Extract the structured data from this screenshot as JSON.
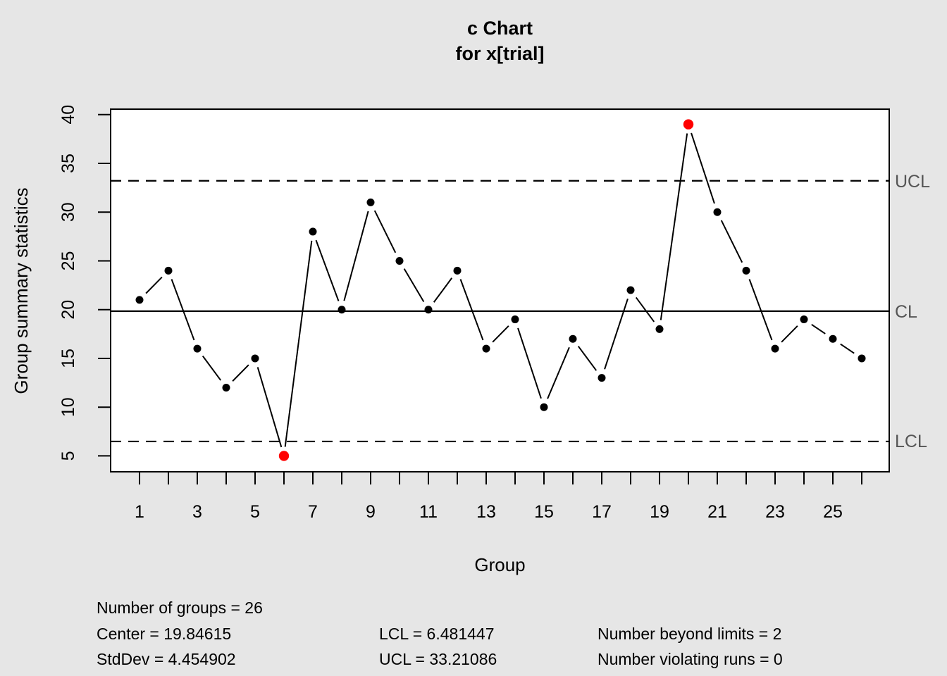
{
  "chart_data": {
    "type": "line",
    "title": "c Chart",
    "subtitle": "for x[trial]",
    "xlabel": "Group",
    "ylabel": "Group summary statistics",
    "x": [
      1,
      2,
      3,
      4,
      5,
      6,
      7,
      8,
      9,
      10,
      11,
      12,
      13,
      14,
      15,
      16,
      17,
      18,
      19,
      20,
      21,
      22,
      23,
      24,
      25,
      26
    ],
    "values": [
      21,
      24,
      16,
      12,
      15,
      5,
      28,
      20,
      31,
      25,
      20,
      24,
      16,
      19,
      10,
      17,
      13,
      22,
      18,
      39,
      30,
      24,
      16,
      19,
      17,
      15
    ],
    "center": 19.84615,
    "lcl": 6.481447,
    "ucl": 33.21086,
    "beyond_limits_groups": [
      6,
      20
    ],
    "x_tick_labels": [
      1,
      3,
      5,
      7,
      9,
      11,
      13,
      15,
      17,
      19,
      21,
      23,
      25
    ],
    "y_tick_labels": [
      5,
      10,
      15,
      20,
      25,
      30,
      35,
      40
    ],
    "ylim": [
      5,
      40
    ],
    "grid": false,
    "legend": "none",
    "line_labels": {
      "ucl": "UCL",
      "cl": "CL",
      "lcl": "LCL"
    },
    "colors": {
      "point": "#000000",
      "violation": "#ff0000",
      "line": "#000000",
      "line_label": "#555555",
      "plot_background": "#ffffff",
      "page_background": "#e6e6e6"
    }
  },
  "stats": {
    "number_of_groups": "Number of groups = 26",
    "center": "Center = 19.84615",
    "stddev": "StdDev = 4.454902",
    "lcl": "LCL = 6.481447",
    "ucl": "UCL = 33.21086",
    "beyond_limits": "Number beyond limits = 2",
    "violating_runs": "Number violating runs = 0"
  }
}
